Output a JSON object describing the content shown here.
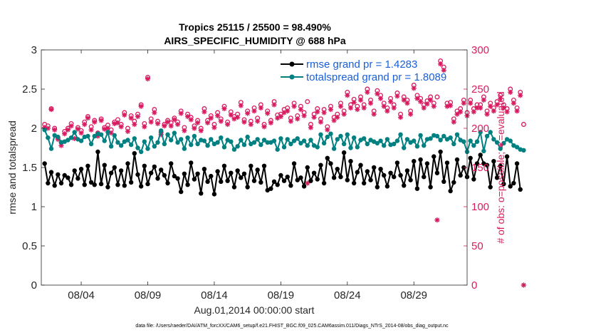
{
  "chart_data": {
    "type": "line",
    "title": "Tropics 25115 / 25500 = 98.490%",
    "subtitle": "AIRS_SPECIFIC_HUMIDITY @ 688 hPa",
    "xlabel": "Aug.01,2014 00:00:00 start",
    "ylabel_left": "rmse and totalspread",
    "ylabel_right": "# of obs: o=possible; ∗=evaluated",
    "footnote": "data file: /Users/raeder/DAI/ATM_forcXX/CAM6_setup/f.e21.FHIST_BGC.f09_025.CAM6assim.011/Diags_NTrS_2014-08/obs_diag_output.nc",
    "xlim": [
      1,
      33
    ],
    "ylim_left": [
      0,
      3
    ],
    "ylim_right": [
      0,
      300
    ],
    "x_ticks": [
      {
        "value": 4,
        "label": "08/04"
      },
      {
        "value": 9,
        "label": "08/09"
      },
      {
        "value": 14,
        "label": "08/14"
      },
      {
        "value": 19,
        "label": "08/19"
      },
      {
        "value": 24,
        "label": "08/24"
      },
      {
        "value": 29,
        "label": "08/29"
      }
    ],
    "y_ticks_left": [
      "0",
      "0.5",
      "1",
      "1.5",
      "2",
      "2.5",
      "3"
    ],
    "y_ticks_right": [
      "0",
      "50",
      "100",
      "150",
      "200",
      "250",
      "300"
    ],
    "legend": [
      {
        "label": "rmse grand pr = 1.4283",
        "color": "#000000"
      },
      {
        "label": "totalspread grand pr = 1.8089",
        "color": "#008080"
      }
    ],
    "colors": {
      "rmse": "#000000",
      "spread": "#008080",
      "obs": "#d81b60"
    },
    "x_start": 1.25,
    "x_step": 0.25,
    "series": [
      {
        "name": "rmse",
        "values": [
          1.55,
          1.3,
          1.44,
          1.27,
          1.41,
          1.3,
          1.4,
          1.37,
          1.28,
          1.46,
          1.36,
          1.48,
          1.28,
          1.52,
          1.31,
          1.28,
          1.7,
          1.29,
          1.53,
          1.25,
          1.43,
          1.5,
          1.28,
          1.46,
          1.27,
          1.55,
          1.31,
          1.68,
          1.41,
          1.26,
          1.52,
          1.29,
          1.43,
          1.51,
          1.36,
          1.47,
          1.4,
          1.3,
          1.55,
          1.39,
          1.36,
          1.19,
          1.42,
          1.28,
          1.56,
          1.35,
          1.42,
          1.17,
          1.48,
          1.32,
          1.39,
          1.16,
          1.45,
          1.32,
          1.52,
          1.33,
          1.43,
          1.25,
          1.46,
          1.37,
          1.42,
          1.25,
          1.52,
          1.33,
          1.47,
          1.31,
          1.52,
          1.21,
          1.23,
          1.32,
          1.28,
          1.4,
          1.33,
          1.38,
          1.27,
          1.55,
          1.34,
          1.37,
          1.26,
          1.5,
          1.33,
          1.43,
          1.35,
          1.53,
          1.3,
          1.62,
          1.55,
          1.37,
          1.48,
          1.38,
          1.69,
          1.34,
          1.58,
          1.3,
          1.44,
          1.53,
          1.3,
          1.45,
          1.34,
          1.5,
          1.25,
          1.48,
          1.4,
          1.26,
          1.43,
          1.38,
          1.56,
          1.4,
          1.27,
          1.46,
          1.34,
          1.58,
          1.23,
          1.6,
          1.38,
          1.55,
          1.25,
          1.64,
          1.43,
          1.7,
          1.32,
          1.56,
          1.2,
          1.31,
          1.6,
          1.4,
          1.5,
          1.38,
          1.62,
          1.35,
          1.55,
          1.66,
          1.55,
          1.53,
          1.25,
          1.58,
          1.37,
          1.52,
          1.29,
          1.64,
          1.26,
          1.3,
          1.55,
          1.22
        ]
      },
      {
        "name": "totalspread",
        "values": [
          1.98,
          1.88,
          1.74,
          1.91,
          1.89,
          1.82,
          1.83,
          1.85,
          1.88,
          1.95,
          1.86,
          1.84,
          1.89,
          1.9,
          1.8,
          1.9,
          1.93,
          1.92,
          1.84,
          1.95,
          1.77,
          1.91,
          1.82,
          1.78,
          1.83,
          1.85,
          1.79,
          1.87,
          1.75,
          1.7,
          1.83,
          1.74,
          1.88,
          1.77,
          1.82,
          1.97,
          1.8,
          1.92,
          1.85,
          1.94,
          1.82,
          1.86,
          1.74,
          1.88,
          1.79,
          1.9,
          1.8,
          1.85,
          1.84,
          1.78,
          1.86,
          1.8,
          1.82,
          1.88,
          1.76,
          1.85,
          1.83,
          1.73,
          1.77,
          1.85,
          1.79,
          1.89,
          1.8,
          1.82,
          1.86,
          1.79,
          1.85,
          1.82,
          1.82,
          1.84,
          1.73,
          1.87,
          1.76,
          1.86,
          1.8,
          1.84,
          1.87,
          1.81,
          1.84,
          1.78,
          1.85,
          1.78,
          1.76,
          1.92,
          1.81,
          1.89,
          1.93,
          1.74,
          1.86,
          1.9,
          1.8,
          1.92,
          1.75,
          1.88,
          1.76,
          1.85,
          1.87,
          1.8,
          1.85,
          1.83,
          1.81,
          1.84,
          1.78,
          1.86,
          1.79,
          1.8,
          1.84,
          1.92,
          1.75,
          1.86,
          1.82,
          1.84,
          1.77,
          1.91,
          1.78,
          1.86,
          1.87,
          1.91,
          1.9,
          1.85,
          1.9,
          1.86,
          1.88,
          1.8,
          1.92,
          1.85,
          1.83,
          1.7,
          1.84,
          1.78,
          1.83,
          1.95,
          1.71,
          1.9,
          1.95,
          1.86,
          1.82,
          1.74,
          1.81,
          1.86,
          1.84,
          1.78,
          1.76,
          1.73,
          1.72
        ]
      },
      {
        "name": "obs_possible",
        "values": [
          205,
          203,
          225,
          200,
          188,
          182,
          196,
          200,
          206,
          190,
          201,
          197,
          208,
          215,
          202,
          210,
          194,
          212,
          201,
          204,
          198,
          208,
          211,
          205,
          220,
          200,
          216,
          209,
          218,
          230,
          206,
          265,
          212,
          224,
          209,
          195,
          205,
          210,
          207,
          213,
          208,
          222,
          201,
          218,
          214,
          203,
          210,
          200,
          225,
          210,
          216,
          205,
          220,
          212,
          228,
          208,
          221,
          215,
          218,
          233,
          211,
          222,
          209,
          226,
          213,
          230,
          205,
          222,
          210,
          234,
          217,
          218,
          224,
          226,
          213,
          232,
          216,
          228,
          220,
          234,
          205,
          218,
          225,
          212,
          224,
          202,
          228,
          214,
          218,
          232,
          222,
          246,
          230,
          237,
          228,
          240,
          230,
          250,
          236,
          222,
          248,
          242,
          232,
          226,
          238,
          230,
          245,
          218,
          240,
          236,
          222,
          255,
          242,
          238,
          230,
          235,
          240,
          232,
          240,
          286,
          278,
          232,
          233,
          212,
          222,
          225,
          236,
          220,
          236,
          225,
          230,
          230,
          240,
          222,
          232,
          226,
          234,
          242,
          230,
          225,
          250,
          236,
          226,
          246,
          205
        ]
      },
      {
        "name": "obs_evaluated",
        "values": [
          201,
          200,
          224,
          198,
          186,
          178,
          193,
          198,
          203,
          187,
          199,
          194,
          205,
          213,
          198,
          208,
          190,
          210,
          199,
          200,
          194,
          206,
          207,
          202,
          217,
          196,
          213,
          205,
          215,
          228,
          202,
          263,
          208,
          220,
          206,
          192,
          203,
          208,
          203,
          211,
          205,
          219,
          197,
          215,
          211,
          200,
          207,
          197,
          221,
          207,
          213,
          201,
          216,
          209,
          225,
          205,
          217,
          212,
          214,
          229,
          208,
          219,
          205,
          222,
          209,
          226,
          202,
          219,
          207,
          230,
          213,
          215,
          220,
          222,
          209,
          228,
          212,
          224,
          216,
          130,
          201,
          214,
          221,
          208,
          220,
          198,
          224,
          210,
          214,
          228,
          218,
          242,
          226,
          233,
          224,
          236,
          226,
          246,
          232,
          218,
          244,
          238,
          228,
          222,
          234,
          226,
          241,
          214,
          236,
          232,
          218,
          251,
          238,
          234,
          226,
          231,
          236,
          228,
          83,
          282,
          274,
          228,
          229,
          208,
          218,
          221,
          232,
          216,
          232,
          221,
          226,
          226,
          236,
          218,
          228,
          222,
          230,
          238,
          226,
          221,
          246,
          232,
          222,
          242,
          0
        ]
      }
    ]
  }
}
